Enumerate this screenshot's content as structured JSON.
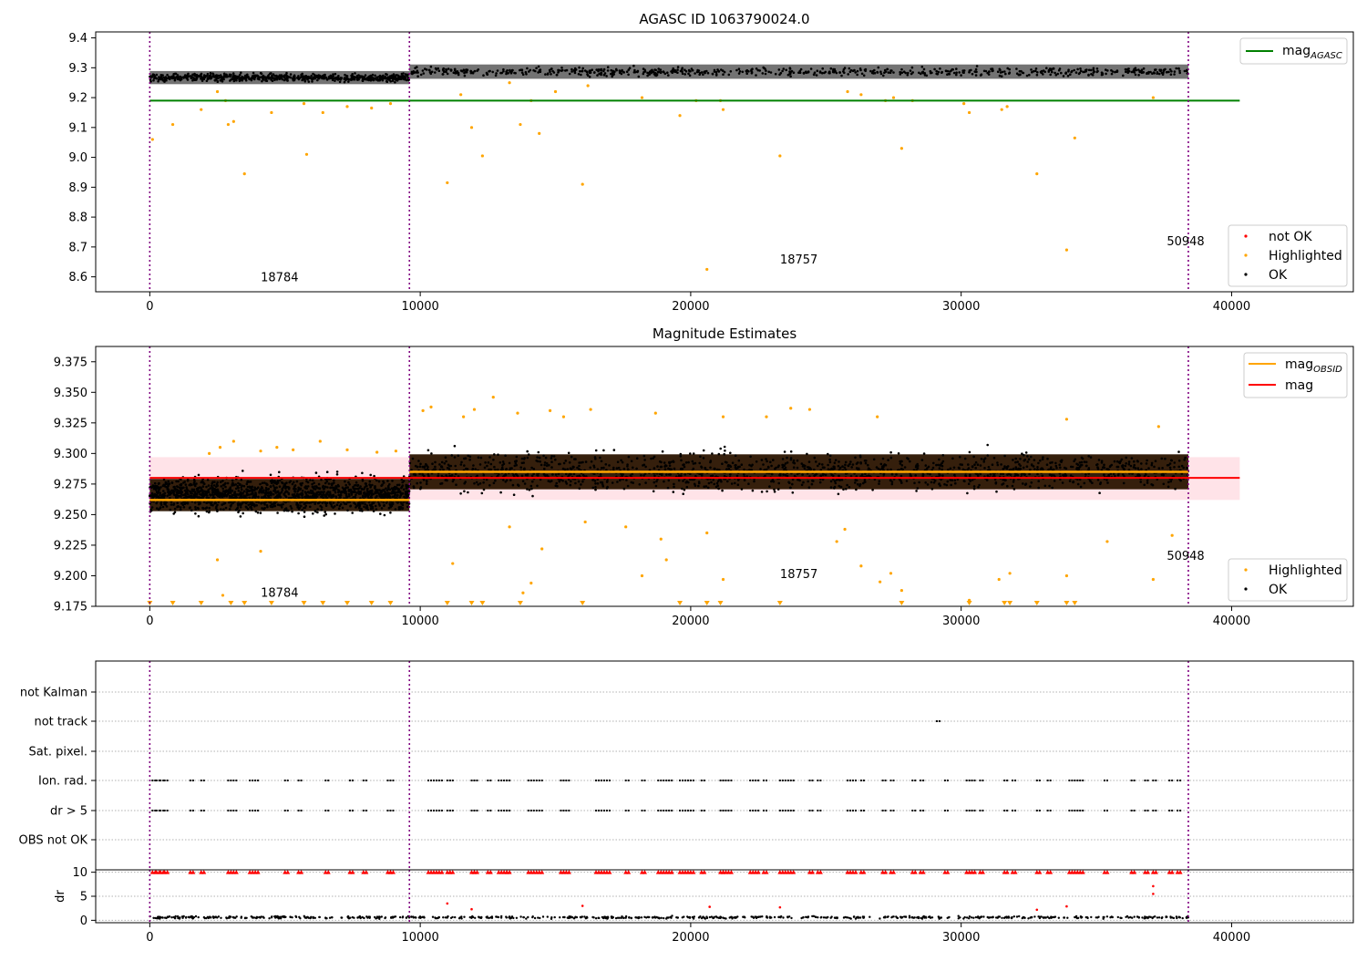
{
  "figure": {
    "title": "AGASC ID 1063790024.0"
  },
  "colors": {
    "ok": "#000000",
    "highlighted": "#ffa500",
    "not_ok": "#ff0000",
    "mag_agasc": "#008000",
    "mag_obsid": "#ffa500",
    "mag": "#ff0000",
    "obs_boundary": "#800080",
    "mag_band": "#ffc0cb"
  },
  "chart_data": [
    {
      "type": "scatter",
      "title": "AGASC ID 1063790024.0",
      "xlim": [
        -2000,
        44500
      ],
      "ylim": [
        8.55,
        9.42
      ],
      "xticks": [
        0,
        10000,
        20000,
        30000,
        40000
      ],
      "xtick_labels": [
        "0",
        "10000",
        "20000",
        "30000",
        "40000"
      ],
      "yticks": [
        8.6,
        8.7,
        8.8,
        8.9,
        9.0,
        9.1,
        9.2,
        9.3,
        9.4
      ],
      "ytick_labels": [
        "8.6",
        "8.7",
        "8.8",
        "8.9",
        "9.0",
        "9.1",
        "9.2",
        "9.3",
        "9.4"
      ],
      "obs_boundaries": [
        0,
        9600,
        38400
      ],
      "obsids": [
        {
          "label": "18784",
          "x": 4800,
          "y": 8.585
        },
        {
          "label": "18757",
          "x": 24000,
          "y": 8.645
        },
        {
          "label": "50948",
          "x": 38300,
          "y": 8.705
        }
      ],
      "mag_agasc": {
        "value": 9.19,
        "x": [
          0,
          40300
        ]
      },
      "series": [
        {
          "name": "OK",
          "segments": [
            {
              "x0": 0,
              "x1": 9600,
              "center": 9.267,
              "spread": 0.022
            },
            {
              "x0": 9600,
              "x1": 38400,
              "center": 9.287,
              "spread": 0.024
            }
          ]
        },
        {
          "name": "Highlighted",
          "points": [
            [
              100,
              9.06
            ],
            [
              850,
              9.11
            ],
            [
              1900,
              9.16
            ],
            [
              2500,
              9.22
            ],
            [
              2800,
              9.19
            ],
            [
              2900,
              9.11
            ],
            [
              3100,
              9.12
            ],
            [
              3500,
              8.945
            ],
            [
              4500,
              9.15
            ],
            [
              5700,
              9.18
            ],
            [
              5800,
              9.01
            ],
            [
              6400,
              9.15
            ],
            [
              7300,
              9.17
            ],
            [
              8200,
              9.165
            ],
            [
              8900,
              9.18
            ],
            [
              11000,
              8.915
            ],
            [
              11500,
              9.21
            ],
            [
              11900,
              9.1
            ],
            [
              12300,
              9.005
            ],
            [
              13300,
              9.25
            ],
            [
              13700,
              9.11
            ],
            [
              14100,
              9.19
            ],
            [
              14400,
              9.08
            ],
            [
              15000,
              9.22
            ],
            [
              16000,
              8.91
            ],
            [
              16200,
              9.24
            ],
            [
              18200,
              9.2
            ],
            [
              19600,
              9.14
            ],
            [
              20200,
              9.19
            ],
            [
              20600,
              8.625
            ],
            [
              21200,
              9.16
            ],
            [
              21100,
              9.19
            ],
            [
              23300,
              9.005
            ],
            [
              25800,
              9.22
            ],
            [
              26300,
              9.21
            ],
            [
              27200,
              9.19
            ],
            [
              27500,
              9.2
            ],
            [
              27800,
              9.03
            ],
            [
              28200,
              9.19
            ],
            [
              30100,
              9.18
            ],
            [
              30300,
              9.15
            ],
            [
              31500,
              9.16
            ],
            [
              31700,
              9.17
            ],
            [
              32800,
              8.945
            ],
            [
              33900,
              8.69
            ],
            [
              34200,
              9.065
            ],
            [
              37100,
              9.2
            ]
          ]
        },
        {
          "name": "not OK",
          "points": []
        }
      ],
      "legend": [
        "not OK",
        "Highlighted",
        "OK"
      ],
      "legend_upper": [
        "mag_AGASC"
      ]
    },
    {
      "type": "scatter",
      "title": "Magnitude Estimates",
      "xlim": [
        -2000,
        44500
      ],
      "ylim": [
        9.175,
        9.3875
      ],
      "xticks": [
        0,
        10000,
        20000,
        30000,
        40000
      ],
      "xtick_labels": [
        "0",
        "10000",
        "20000",
        "30000",
        "40000"
      ],
      "yticks": [
        9.175,
        9.2,
        9.225,
        9.25,
        9.275,
        9.3,
        9.325,
        9.35,
        9.375
      ],
      "ytick_labels": [
        "9.175",
        "9.200",
        "9.225",
        "9.250",
        "9.275",
        "9.300",
        "9.325",
        "9.350",
        "9.375"
      ],
      "obs_boundaries": [
        0,
        9600,
        38400
      ],
      "obsids": [
        {
          "label": "18784",
          "x": 4800,
          "y": 9.183
        },
        {
          "label": "18757",
          "x": 24000,
          "y": 9.198
        },
        {
          "label": "50948",
          "x": 38300,
          "y": 9.213
        }
      ],
      "mag": {
        "value": 9.28,
        "band": [
          9.262,
          9.297
        ],
        "x": [
          0,
          40300
        ]
      },
      "mag_obsid": [
        {
          "x0": 0,
          "x1": 9600,
          "value": 9.262
        },
        {
          "x0": 9600,
          "x1": 38400,
          "value": 9.285
        }
      ],
      "series": [
        {
          "name": "OK",
          "segments": [
            {
              "x0": 0,
              "x1": 9600,
              "center": 9.266,
              "spread": 0.024
            },
            {
              "x0": 9600,
              "x1": 38400,
              "center": 9.285,
              "spread": 0.026
            }
          ]
        },
        {
          "name": "Highlighted",
          "points": [
            [
              2500,
              9.213
            ],
            [
              4100,
              9.22
            ],
            [
              14500,
              9.222
            ],
            [
              11200,
              9.21
            ],
            [
              13300,
              9.24
            ],
            [
              17600,
              9.24
            ],
            [
              18200,
              9.2
            ],
            [
              18900,
              9.23
            ],
            [
              19100,
              9.213
            ],
            [
              20600,
              9.235
            ],
            [
              21200,
              9.197
            ],
            [
              25400,
              9.228
            ],
            [
              25700,
              9.238
            ],
            [
              26300,
              9.208
            ],
            [
              27000,
              9.195
            ],
            [
              27400,
              9.202
            ],
            [
              27800,
              9.188
            ],
            [
              30300,
              9.18
            ],
            [
              31400,
              9.197
            ],
            [
              31800,
              9.202
            ],
            [
              33900,
              9.2
            ],
            [
              35400,
              9.228
            ],
            [
              37100,
              9.197
            ],
            [
              37800,
              9.233
            ],
            [
              16100,
              9.244
            ],
            [
              13800,
              9.186
            ],
            [
              14100,
              9.194
            ],
            [
              2700,
              9.184
            ],
            [
              2200,
              9.3
            ],
            [
              2600,
              9.305
            ],
            [
              3100,
              9.31
            ],
            [
              4100,
              9.302
            ],
            [
              4700,
              9.305
            ],
            [
              5300,
              9.303
            ],
            [
              6300,
              9.31
            ],
            [
              7300,
              9.303
            ],
            [
              8400,
              9.301
            ],
            [
              9100,
              9.302
            ],
            [
              10100,
              9.335
            ],
            [
              10400,
              9.338
            ],
            [
              11600,
              9.33
            ],
            [
              12000,
              9.336
            ],
            [
              12700,
              9.346
            ],
            [
              13600,
              9.333
            ],
            [
              14800,
              9.335
            ],
            [
              15300,
              9.33
            ],
            [
              16300,
              9.336
            ],
            [
              18700,
              9.333
            ],
            [
              21200,
              9.33
            ],
            [
              22800,
              9.33
            ],
            [
              23700,
              9.337
            ],
            [
              24400,
              9.336
            ],
            [
              26900,
              9.33
            ],
            [
              33900,
              9.328
            ],
            [
              37300,
              9.322
            ]
          ]
        },
        {
          "name": "Highlighted",
          "clipped_markers": [
            0,
            850,
            1900,
            3000,
            3500,
            4500,
            5700,
            6400,
            7300,
            8200,
            8900,
            11000,
            11900,
            12300,
            13700,
            16000,
            19600,
            20600,
            21100,
            23300,
            27800,
            30300,
            31600,
            31800,
            32800,
            33900,
            34200
          ]
        }
      ],
      "legend": [
        "Highlighted",
        "OK"
      ],
      "legend_upper": [
        "mag_OBSID",
        "mag"
      ]
    },
    {
      "type": "scatter",
      "title": "",
      "xlim": [
        -2000,
        44500
      ],
      "xticks": [
        0,
        10000,
        20000,
        30000,
        40000
      ],
      "xtick_labels": [
        "0",
        "10000",
        "20000",
        "30000",
        "40000"
      ],
      "obs_boundaries": [
        0,
        9600,
        38400
      ],
      "flags": [
        "not Kalman",
        "not track",
        "Sat. pixel.",
        "Ion. rad.",
        "dr > 5",
        "OBS not OK"
      ],
      "flag_points": {
        "not Kalman": [],
        "not track": [
          29100
        ],
        "Sat. pixel.": [],
        "Ion. rad.": [
          100,
          250,
          400,
          550,
          1500,
          1900,
          2900,
          3100,
          3700,
          3900,
          5000,
          5500,
          6500,
          7400,
          7900,
          8800,
          8900,
          10300,
          10500,
          10700,
          11000,
          11100,
          11900,
          12000,
          12500,
          12900,
          13100,
          13200,
          14000,
          14200,
          14400,
          15200,
          15400,
          16500,
          16700,
          16900,
          17600,
          18200,
          18800,
          19000,
          19200,
          19600,
          19800,
          20000,
          20400,
          21100,
          21200,
          21400,
          22200,
          22400,
          22700,
          23300,
          23500,
          23700,
          24400,
          24700,
          25800,
          26000,
          26300,
          27100,
          27400,
          28200,
          28500,
          29400,
          30200,
          30400,
          30700,
          31600,
          31900,
          32800,
          33200,
          34000,
          34200,
          34400,
          35300,
          36300,
          36800,
          37100,
          37700,
          38000
        ],
        "dr > 5": [
          100,
          250,
          400,
          550,
          1500,
          1900,
          2900,
          3100,
          3700,
          3900,
          5000,
          5500,
          6500,
          7400,
          7900,
          8800,
          8900,
          10300,
          10500,
          10700,
          11000,
          11100,
          11900,
          12000,
          12500,
          12900,
          13100,
          13200,
          14000,
          14200,
          14400,
          15200,
          15400,
          16500,
          16700,
          16900,
          17600,
          18200,
          18800,
          19000,
          19200,
          19600,
          19800,
          20000,
          20400,
          21100,
          21200,
          21400,
          22200,
          22400,
          22700,
          23300,
          23500,
          23700,
          24400,
          24700,
          25800,
          26000,
          26300,
          27100,
          27400,
          28200,
          28500,
          29400,
          30200,
          30400,
          30700,
          31600,
          31900,
          32800,
          33200,
          34000,
          34200,
          34400,
          35300,
          36300,
          36800,
          37100,
          37700,
          38000
        ],
        "OBS not OK": []
      },
      "dr": {
        "ylabel": "dr",
        "ylim": [
          -0.5,
          10.5
        ],
        "yticks": [
          0,
          5,
          10
        ],
        "ytick_labels": [
          "0",
          "5",
          "10"
        ],
        "clipped_at": 10,
        "clipped_x": [
          100,
          250,
          400,
          550,
          1500,
          1900,
          2900,
          3100,
          3700,
          3900,
          5000,
          5500,
          6500,
          7400,
          7900,
          8800,
          8900,
          10300,
          10500,
          10700,
          11000,
          11100,
          11900,
          12000,
          12500,
          12900,
          13100,
          13200,
          14000,
          14200,
          14400,
          15200,
          15400,
          16500,
          16700,
          16900,
          17600,
          18200,
          18800,
          19000,
          19200,
          19600,
          19800,
          20000,
          20400,
          21100,
          21200,
          21400,
          22200,
          22400,
          22700,
          23300,
          23500,
          23700,
          24400,
          24700,
          25800,
          26000,
          26300,
          27100,
          27400,
          28200,
          28500,
          29400,
          30200,
          30400,
          30700,
          31600,
          31900,
          32800,
          33200,
          34000,
          34200,
          34400,
          35300,
          36300,
          36800,
          37100,
          37700,
          38000
        ],
        "outliers": [
          [
            11000,
            3.5
          ],
          [
            16000,
            3.0
          ],
          [
            20700,
            2.8
          ],
          [
            23300,
            2.7
          ],
          [
            33900,
            2.9
          ],
          [
            37100,
            5.5
          ],
          [
            37100,
            7.1
          ],
          [
            11900,
            2.3
          ],
          [
            32800,
            2.2
          ]
        ],
        "baseline": {
          "x0": 0,
          "x1": 38400,
          "center": 0.6,
          "spread": 0.4
        }
      }
    }
  ]
}
